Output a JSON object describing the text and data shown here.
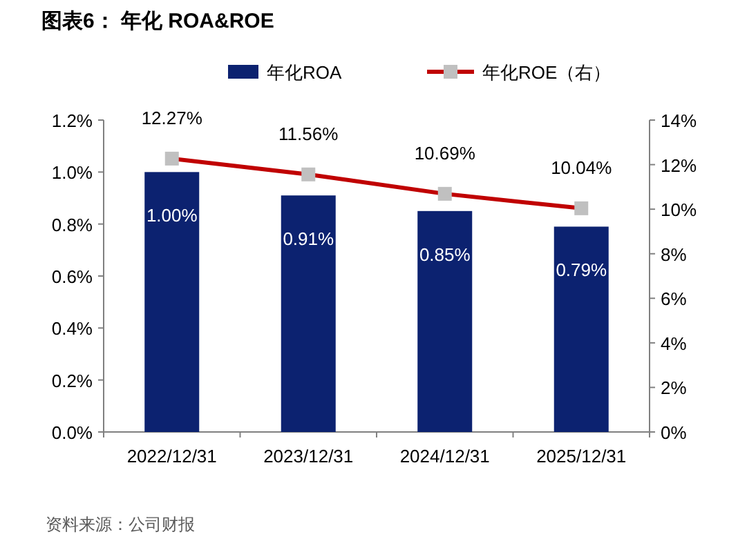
{
  "chart_data": {
    "type": "bar",
    "title": "图表6：  年化 ROA&ROE",
    "categories": [
      "2022/12/31",
      "2023/12/31",
      "2024/12/31",
      "2025/12/31"
    ],
    "series": [
      {
        "name": "年化ROA",
        "color": "#0c2270",
        "values": [
          1.0,
          0.91,
          0.85,
          0.79
        ],
        "value_labels": [
          "1.00%",
          "0.91%",
          "0.85%",
          "0.79%"
        ]
      },
      {
        "name": "年化ROE（右）",
        "type": "line",
        "axis": "y2",
        "color": "#c00000",
        "marker": "square",
        "values": [
          12.27,
          11.56,
          10.69,
          10.04
        ],
        "value_labels": [
          "12.27%",
          "11.56%",
          "10.69%",
          "10.04%"
        ]
      }
    ],
    "ylim": [
      0,
      1.2
    ],
    "yticks": [
      {
        "value": 0,
        "label": "0.0%"
      },
      {
        "value": 0.2,
        "label": "0.2%"
      },
      {
        "value": 0.4,
        "label": "0.4%"
      },
      {
        "value": 0.6,
        "label": "0.6%"
      },
      {
        "value": 0.8,
        "label": "0.8%"
      },
      {
        "value": 1.0,
        "label": "1.0%"
      },
      {
        "value": 1.2,
        "label": "1.2%"
      }
    ],
    "y2lim": [
      0,
      14
    ],
    "y2ticks": [
      {
        "value": 0,
        "label": "0%"
      },
      {
        "value": 2,
        "label": "2%"
      },
      {
        "value": 4,
        "label": "4%"
      },
      {
        "value": 6,
        "label": "6%"
      },
      {
        "value": 8,
        "label": "8%"
      },
      {
        "value": 10,
        "label": "10%"
      },
      {
        "value": 12,
        "label": "12%"
      },
      {
        "value": 14,
        "label": "14%"
      }
    ],
    "legend": "top",
    "grid": false,
    "annotations": [
      "资料来源：公司财报"
    ]
  }
}
